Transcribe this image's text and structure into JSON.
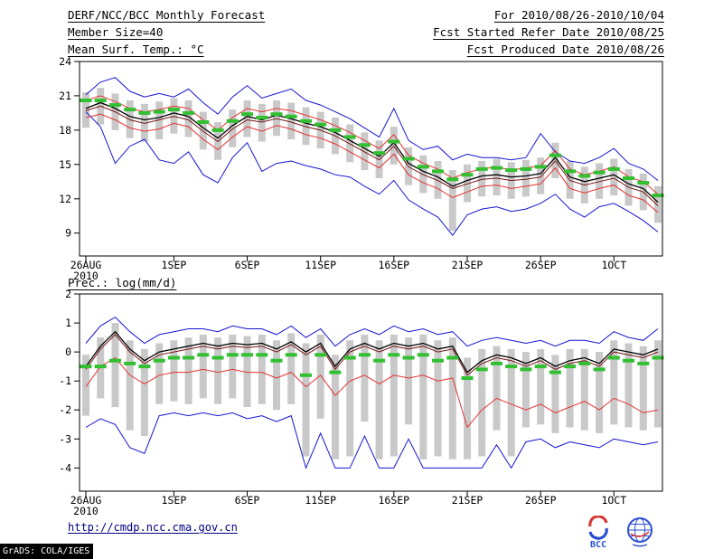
{
  "header": {
    "title": "DERF/NCC/BCC Monthly Forecast",
    "date_range": "For 2010/08/26-2010/10/04",
    "member_size": "Member Size=40",
    "refer_date": "Fcst Started Refer Date 2010/08/25",
    "produced_date": "Fcst Produced Date 2010/08/26"
  },
  "footer": {
    "url": "http://cmdp.ncc.cma.gov.cn",
    "grads_credit": "GrADS: COLA/IGES",
    "bcc_label": "BCC"
  },
  "chart_data": [
    {
      "type": "line",
      "title": "Mean Surf. Temp.: °C",
      "n": 40,
      "ylim": [
        7.0,
        24.0
      ],
      "yticks": [
        9,
        12,
        15,
        18,
        21,
        24
      ],
      "xticks": {
        "positions": [
          0,
          6,
          11,
          16,
          21,
          26,
          31,
          36
        ],
        "labels": [
          "26AUG",
          "1SEP",
          "6SEP",
          "11SEP",
          "16SEP",
          "21SEP",
          "26SEP",
          "1OCT"
        ],
        "sublabel": "2010"
      },
      "bars": {
        "name": "ensemble-spread-bars",
        "color": "#c9c9c9",
        "high": [
          21.3,
          21.7,
          21.2,
          20.6,
          20.3,
          20.5,
          20.8,
          20.6,
          19.6,
          18.7,
          19.8,
          20.6,
          20.3,
          20.6,
          20.4,
          20.0,
          19.6,
          19.1,
          18.5,
          17.8,
          17.1,
          18.3,
          16.5,
          15.8,
          15.3,
          14.5,
          15.0,
          15.3,
          15.5,
          15.2,
          15.4,
          15.6,
          16.9,
          15.3,
          14.8,
          15.1,
          15.5,
          14.6,
          14.2,
          13.1
        ],
        "low": [
          18.2,
          18.5,
          18.0,
          17.3,
          17.0,
          17.2,
          17.7,
          17.4,
          16.3,
          15.4,
          16.5,
          17.4,
          17.0,
          17.5,
          17.2,
          16.7,
          16.4,
          15.9,
          15.2,
          14.5,
          13.8,
          15.0,
          13.2,
          12.5,
          12.0,
          9.2,
          11.7,
          12.2,
          12.3,
          12.0,
          12.2,
          12.4,
          13.8,
          12.0,
          11.6,
          12.0,
          12.3,
          11.4,
          11.0,
          9.9
        ]
      },
      "series": [
        {
          "name": "ensemble-max",
          "color": "#1414d2",
          "width": 1,
          "values": [
            21.1,
            22.2,
            22.6,
            21.4,
            20.9,
            21.2,
            20.9,
            21.6,
            20.4,
            19.4,
            20.9,
            21.9,
            20.8,
            21.2,
            21.6,
            20.6,
            20.2,
            19.6,
            19.0,
            18.2,
            17.4,
            19.9,
            17.1,
            16.3,
            16.6,
            15.4,
            15.9,
            15.6,
            15.6,
            15.4,
            15.6,
            17.7,
            16.1,
            15.3,
            15.1,
            15.6,
            16.4,
            15.1,
            14.6,
            13.6
          ]
        },
        {
          "name": "ensemble-min",
          "color": "#1414d2",
          "width": 1,
          "values": [
            19.6,
            18.3,
            15.1,
            16.6,
            17.2,
            15.4,
            15.1,
            16.1,
            14.1,
            13.4,
            15.6,
            16.9,
            14.4,
            15.1,
            15.3,
            14.9,
            14.6,
            14.1,
            13.9,
            13.1,
            12.4,
            13.6,
            11.9,
            11.1,
            10.4,
            8.8,
            10.6,
            11.1,
            11.3,
            10.9,
            11.1,
            11.6,
            12.4,
            11.1,
            10.4,
            11.3,
            11.6,
            10.9,
            10.1,
            9.1
          ]
        },
        {
          "name": "upper-quartile",
          "color": "#e63232",
          "width": 1,
          "values": [
            20.6,
            21.0,
            20.5,
            19.9,
            19.6,
            19.8,
            20.1,
            19.9,
            18.9,
            18.0,
            19.1,
            19.9,
            19.6,
            19.9,
            19.7,
            19.3,
            18.9,
            18.4,
            17.8,
            17.1,
            16.4,
            17.6,
            15.8,
            15.1,
            14.6,
            13.8,
            14.3,
            14.6,
            14.8,
            14.5,
            14.7,
            14.9,
            16.2,
            14.6,
            14.1,
            14.4,
            14.8,
            13.9,
            13.5,
            12.4
          ]
        },
        {
          "name": "lower-quartile",
          "color": "#e63232",
          "width": 1,
          "values": [
            19.1,
            19.4,
            18.9,
            18.2,
            17.9,
            18.1,
            18.6,
            18.3,
            17.2,
            16.3,
            17.4,
            18.3,
            17.9,
            18.4,
            18.1,
            17.6,
            17.3,
            16.8,
            16.1,
            15.4,
            14.7,
            15.9,
            14.1,
            13.4,
            12.9,
            12.1,
            12.6,
            13.1,
            13.2,
            12.9,
            13.1,
            13.3,
            14.7,
            12.9,
            12.5,
            12.9,
            13.2,
            12.3,
            11.9,
            10.8
          ]
        },
        {
          "name": "control-run",
          "color": "#781414",
          "width": 1,
          "values": [
            19.7,
            20.1,
            19.6,
            18.9,
            18.6,
            18.9,
            19.2,
            18.9,
            17.9,
            17.0,
            18.1,
            18.9,
            18.7,
            19.0,
            18.7,
            18.3,
            18.0,
            17.5,
            16.8,
            16.1,
            15.4,
            16.6,
            14.8,
            14.1,
            13.6,
            12.9,
            13.3,
            13.7,
            13.8,
            13.6,
            13.7,
            13.9,
            15.3,
            13.6,
            13.2,
            13.5,
            13.8,
            13.0,
            12.6,
            11.4
          ]
        },
        {
          "name": "ensemble-mean",
          "color": "#000000",
          "width": 1.3,
          "values": [
            19.9,
            20.4,
            19.9,
            19.2,
            18.9,
            19.1,
            19.5,
            19.2,
            18.2,
            17.3,
            18.4,
            19.2,
            18.9,
            19.3,
            19.0,
            18.6,
            18.3,
            17.8,
            17.1,
            16.4,
            15.7,
            16.9,
            15.1,
            14.4,
            13.9,
            13.1,
            13.6,
            14.0,
            14.1,
            13.9,
            14.0,
            14.2,
            15.6,
            13.9,
            13.5,
            13.8,
            14.1,
            13.3,
            12.9,
            11.7
          ]
        }
      ],
      "dashes": {
        "name": "climatology",
        "color": "#30c030",
        "values": [
          20.6,
          20.6,
          20.2,
          19.8,
          19.5,
          19.6,
          19.8,
          19.5,
          18.7,
          18.0,
          18.8,
          19.4,
          19.1,
          19.4,
          19.2,
          18.8,
          18.5,
          18.0,
          17.4,
          16.7,
          16.0,
          17.0,
          15.5,
          14.8,
          14.4,
          13.7,
          14.1,
          14.6,
          14.7,
          14.5,
          14.6,
          14.8,
          15.8,
          14.4,
          14.0,
          14.3,
          14.6,
          13.8,
          13.4,
          12.3
        ]
      }
    },
    {
      "type": "line",
      "title": "Prec.: log(mm/d)",
      "n": 40,
      "ylim": [
        -4.8,
        2.0
      ],
      "yticks": [
        -4,
        -3,
        -2,
        -1,
        0,
        1,
        2
      ],
      "xticks": {
        "positions": [
          0,
          6,
          11,
          16,
          21,
          26,
          31,
          36
        ],
        "labels": [
          "26AUG",
          "1SEP",
          "6SEP",
          "11SEP",
          "16SEP",
          "21SEP",
          "26SEP",
          "1OCT"
        ],
        "sublabel": "2010"
      },
      "bars": {
        "name": "ensemble-spread-bars",
        "color": "#c9c9c9",
        "high": [
          -0.1,
          0.5,
          1.0,
          0.4,
          0.1,
          0.3,
          0.4,
          0.5,
          0.6,
          0.5,
          0.6,
          0.55,
          0.6,
          0.4,
          0.65,
          0.3,
          0.6,
          -0.1,
          0.4,
          0.6,
          0.4,
          0.6,
          0.5,
          0.6,
          0.4,
          0.5,
          -0.2,
          0.1,
          0.2,
          0.1,
          0.0,
          0.1,
          -0.1,
          0.1,
          0.1,
          0.0,
          0.4,
          0.3,
          0.2,
          0.4
        ],
        "low": [
          -2.2,
          -1.6,
          -1.9,
          -2.7,
          -2.9,
          -1.8,
          -1.7,
          -1.8,
          -1.6,
          -1.8,
          -1.6,
          -1.9,
          -1.8,
          -2.0,
          -1.8,
          -3.6,
          -2.3,
          -3.7,
          -3.6,
          -2.4,
          -3.7,
          -3.6,
          -2.5,
          -3.7,
          -3.6,
          -3.7,
          -3.7,
          -3.6,
          -2.7,
          -3.6,
          -2.6,
          -2.5,
          -2.8,
          -2.6,
          -2.7,
          -2.8,
          -2.5,
          -2.6,
          -2.7,
          -2.6
        ]
      },
      "series": [
        {
          "name": "ensemble-max",
          "color": "#1414d2",
          "width": 1,
          "values": [
            0.3,
            0.9,
            1.2,
            0.7,
            0.3,
            0.6,
            0.7,
            0.8,
            0.8,
            0.7,
            0.9,
            0.8,
            0.8,
            0.6,
            0.9,
            0.5,
            0.8,
            0.2,
            0.6,
            0.8,
            0.6,
            0.9,
            0.7,
            0.8,
            0.6,
            0.7,
            0.2,
            0.4,
            0.5,
            0.4,
            0.3,
            0.4,
            0.2,
            0.4,
            0.4,
            0.3,
            0.7,
            0.5,
            0.4,
            0.8
          ]
        },
        {
          "name": "ensemble-min",
          "color": "#1414d2",
          "width": 1,
          "values": [
            -2.6,
            -2.3,
            -2.5,
            -3.3,
            -3.5,
            -2.2,
            -2.1,
            -2.2,
            -2.1,
            -2.2,
            -2.1,
            -2.3,
            -2.2,
            -2.4,
            -2.2,
            -4.0,
            -2.8,
            -4.0,
            -4.0,
            -2.9,
            -4.0,
            -4.0,
            -3.0,
            -4.0,
            -4.0,
            -4.0,
            -4.0,
            -4.0,
            -3.2,
            -4.0,
            -3.1,
            -3.0,
            -3.3,
            -3.1,
            -3.2,
            -3.3,
            -3.0,
            -3.1,
            -3.2,
            -3.1
          ]
        },
        {
          "name": "lower-quartile",
          "color": "#e63232",
          "width": 1,
          "values": [
            -1.2,
            -0.5,
            -0.2,
            -0.8,
            -1.1,
            -0.8,
            -0.7,
            -0.7,
            -0.6,
            -0.7,
            -0.6,
            -0.7,
            -0.7,
            -0.9,
            -0.7,
            -1.2,
            -0.8,
            -1.5,
            -1.0,
            -0.8,
            -1.1,
            -0.8,
            -0.9,
            -0.8,
            -1.0,
            -0.9,
            -2.6,
            -2.0,
            -1.6,
            -1.8,
            -2.0,
            -1.8,
            -2.1,
            -1.9,
            -1.7,
            -2.0,
            -1.6,
            -1.8,
            -2.1,
            -2.0
          ]
        },
        {
          "name": "control-run",
          "color": "#781414",
          "width": 1,
          "values": [
            -0.6,
            0.1,
            0.6,
            0.0,
            -0.4,
            -0.1,
            0.0,
            0.1,
            0.2,
            0.1,
            0.2,
            0.15,
            0.2,
            0.0,
            0.25,
            -0.1,
            0.2,
            -0.6,
            0.0,
            0.2,
            0.0,
            0.2,
            0.1,
            0.2,
            0.0,
            0.1,
            -0.8,
            -0.4,
            -0.2,
            -0.3,
            -0.5,
            -0.3,
            -0.6,
            -0.4,
            -0.3,
            -0.5,
            0.0,
            -0.1,
            -0.2,
            0.0
          ]
        },
        {
          "name": "ensemble-mean",
          "color": "#000000",
          "width": 1.3,
          "values": [
            -0.5,
            0.2,
            0.7,
            0.1,
            -0.3,
            0.0,
            0.1,
            0.2,
            0.3,
            0.2,
            0.3,
            0.25,
            0.3,
            0.1,
            0.35,
            0.0,
            0.3,
            -0.5,
            0.1,
            0.3,
            0.1,
            0.3,
            0.2,
            0.3,
            0.1,
            0.2,
            -0.7,
            -0.3,
            -0.1,
            -0.2,
            -0.4,
            -0.2,
            -0.5,
            -0.3,
            -0.2,
            -0.4,
            0.1,
            0.0,
            -0.1,
            0.1
          ]
        }
      ],
      "dashes": {
        "name": "climatology",
        "color": "#30c030",
        "values": [
          -0.5,
          -0.5,
          -0.3,
          -0.4,
          -0.5,
          -0.3,
          -0.2,
          -0.2,
          -0.1,
          -0.2,
          -0.1,
          -0.1,
          -0.1,
          -0.3,
          -0.1,
          -0.8,
          -0.1,
          -0.7,
          -0.2,
          -0.1,
          -0.3,
          -0.1,
          -0.2,
          -0.1,
          -0.3,
          -0.2,
          -0.9,
          -0.6,
          -0.4,
          -0.5,
          -0.6,
          -0.5,
          -0.7,
          -0.5,
          -0.4,
          -0.6,
          -0.2,
          -0.3,
          -0.4,
          -0.2
        ]
      }
    }
  ]
}
